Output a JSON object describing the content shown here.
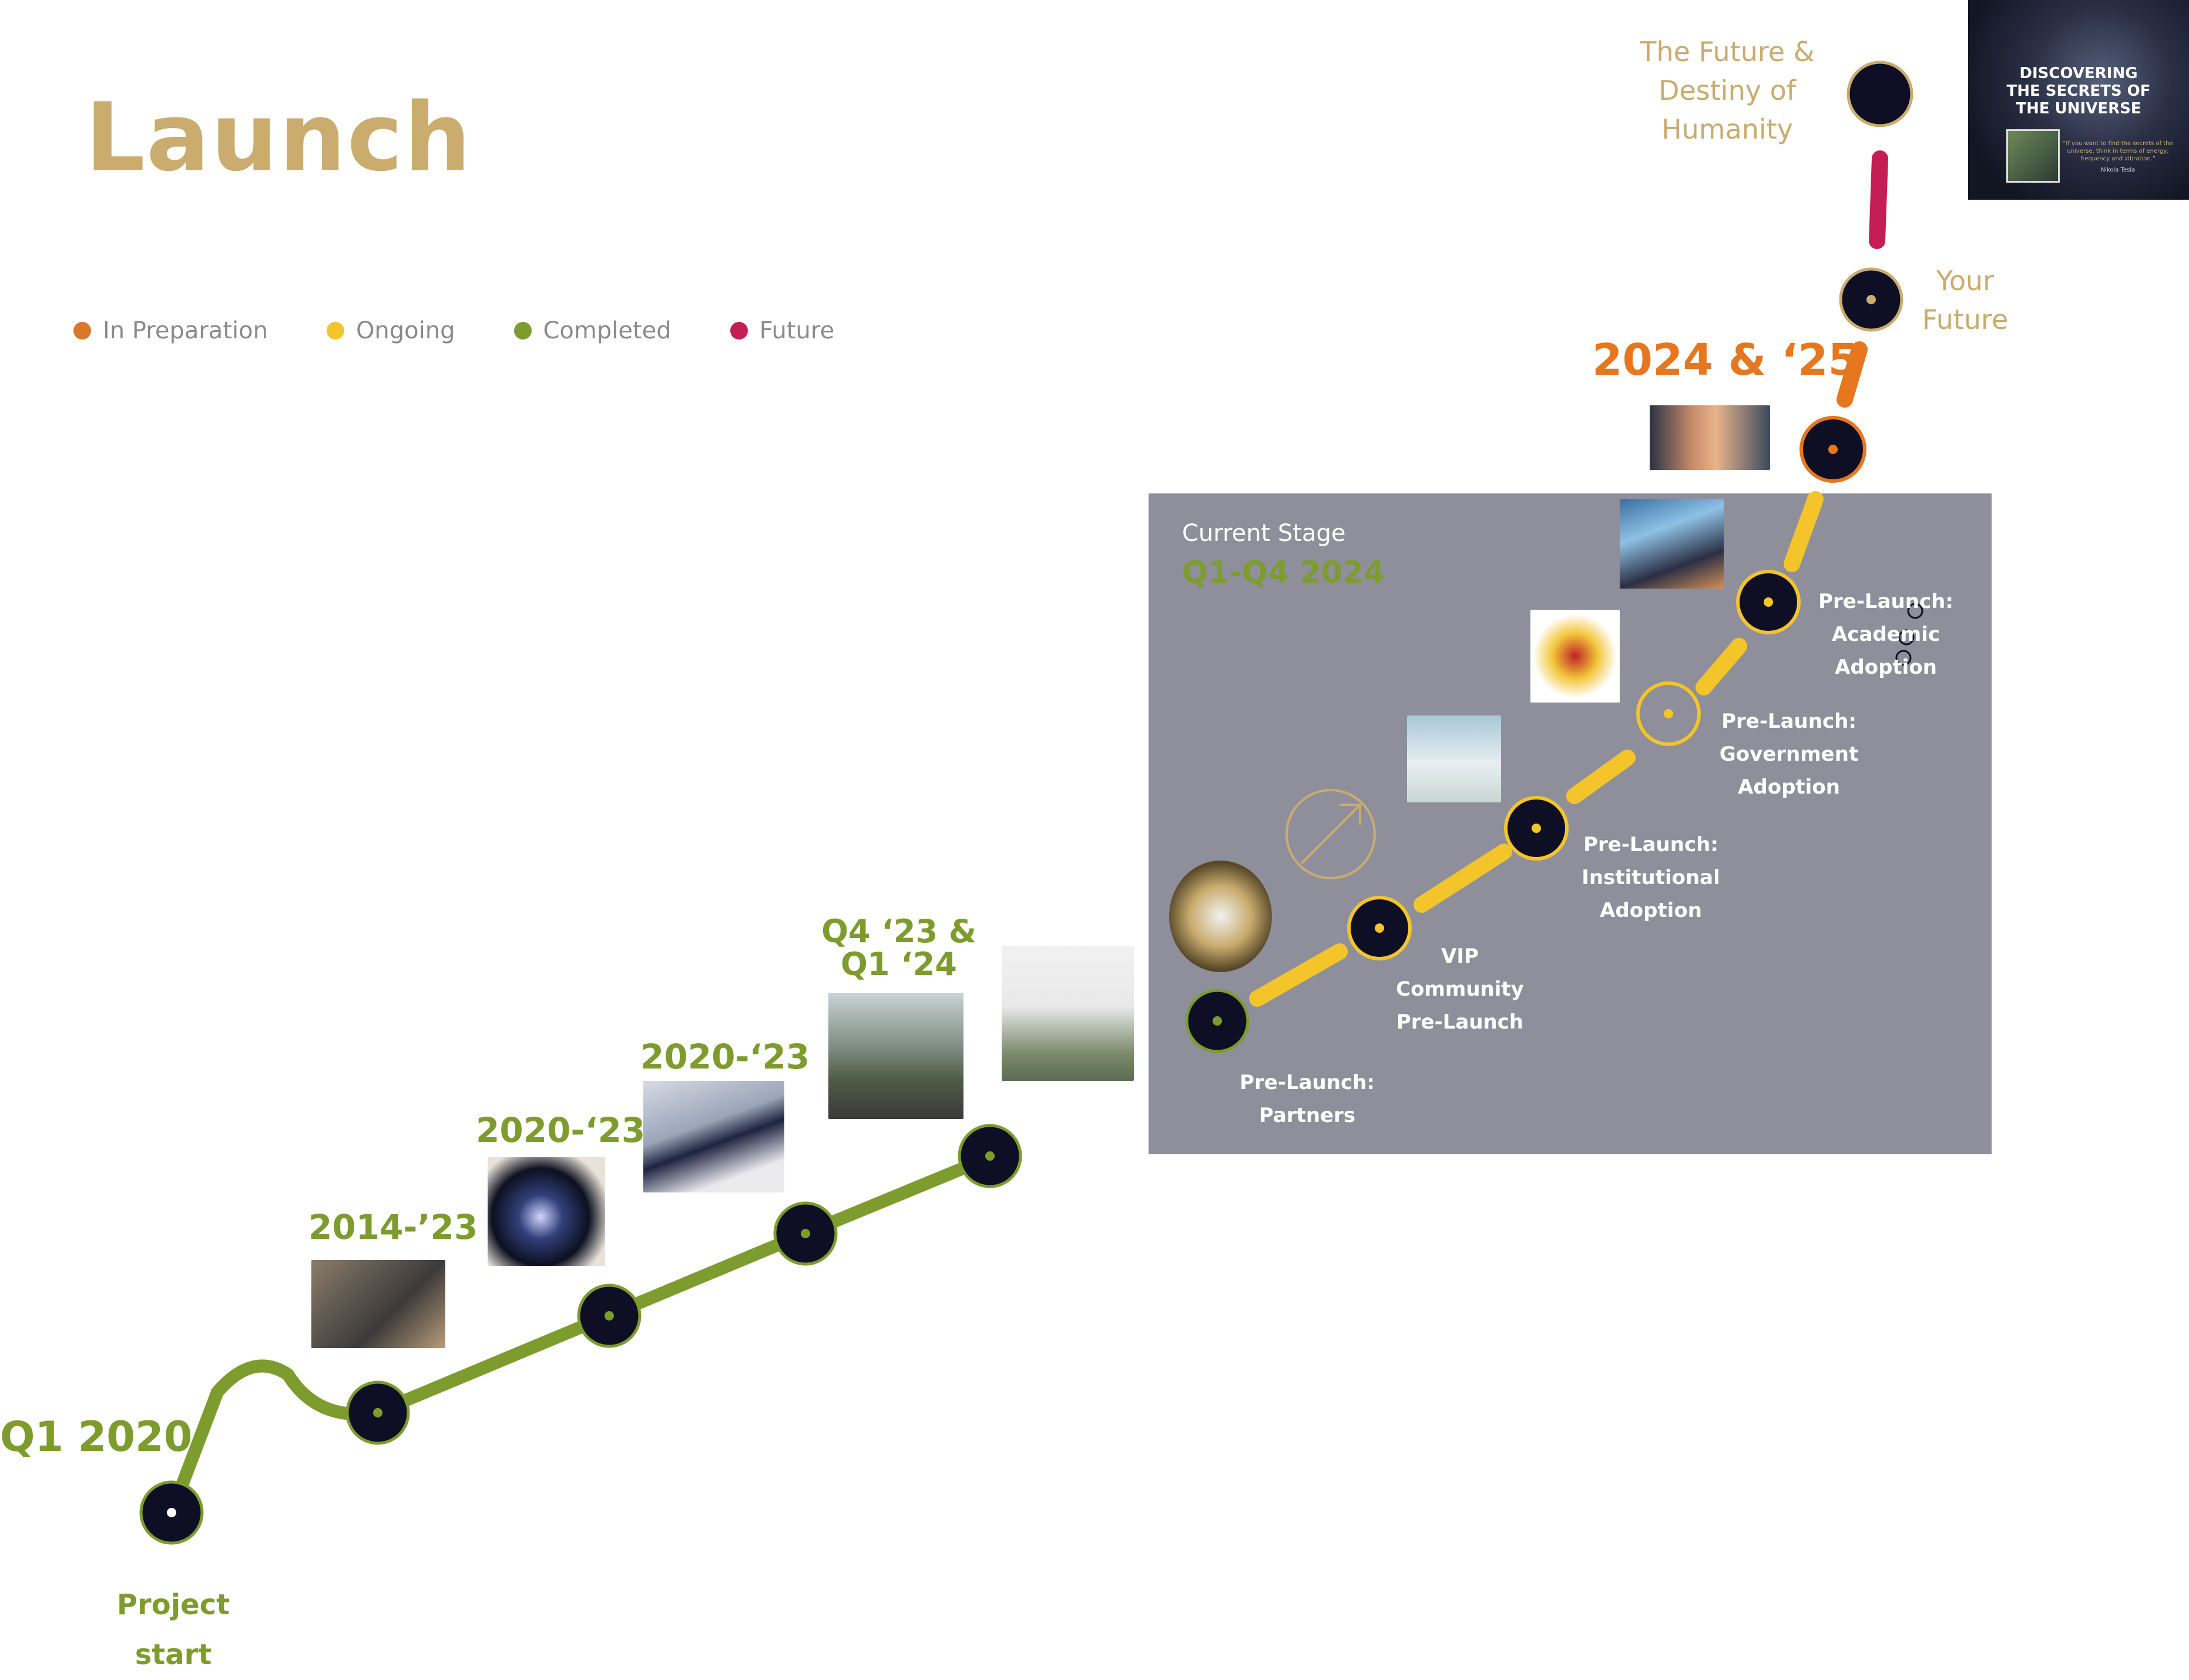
{
  "title": "Launch",
  "legend": [
    {
      "label": "In Preparation",
      "color": "#D9772B"
    },
    {
      "label": "Ongoing",
      "color": "#F3C52B"
    },
    {
      "label": "Completed",
      "color": "#7E9B2E"
    },
    {
      "label": "Future",
      "color": "#C41E55"
    }
  ],
  "current_stage": {
    "label": "Current Stage",
    "period": "Q1-Q4 2024"
  },
  "milestones": {
    "q1_2020": "Q1 2020",
    "project_start": [
      "Project",
      "start"
    ],
    "m2014_23": "2014-’23",
    "m2020_23a": "2020-‘23",
    "m2020_23b": "2020-‘23",
    "q4_23_q1_24": [
      "Q4 ‘23 &",
      "Q1 ‘24"
    ],
    "y2024_25": "2024 & ‘25",
    "your_future": [
      "Your",
      "Future"
    ],
    "future_destiny": [
      "The Future &",
      "Destiny of",
      "Humanity"
    ]
  },
  "stages": {
    "partners": [
      "Pre-Launch:",
      "Partners"
    ],
    "vip": [
      "VIP",
      "Community",
      "Pre-Launch"
    ],
    "institutional": [
      "Pre-Launch:",
      "Institutional",
      "Adoption"
    ],
    "government": [
      "Pre-Launch:",
      "Government",
      "Adoption"
    ],
    "academic": [
      "Pre-Launch:",
      "Academic",
      "Adoption"
    ]
  },
  "book_cover": {
    "title": [
      "DISCOVERING",
      "THE SECRETS OF",
      "THE UNIVERSE"
    ],
    "quote": "“If you want to find the secrets of the universe, think in terms of energy, frequency and vibration.”",
    "author": "Nikola Tesla"
  },
  "colors": {
    "completed": "#7E9B2E",
    "ongoing": "#F3C52B",
    "in_preparation": "#E7771F",
    "future": "#C41E55",
    "node_fill": "#0E0F24",
    "gold": "#C9AC6E"
  }
}
